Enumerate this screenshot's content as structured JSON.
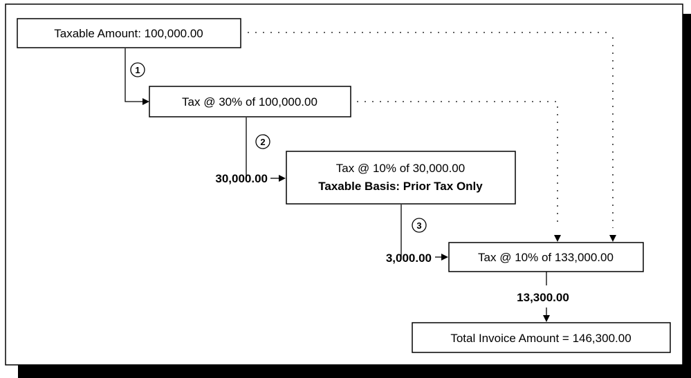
{
  "boxes": {
    "taxable_amount": "Taxable Amount: 100,000.00",
    "tax_30": "Tax @ 30% of 100,000.00",
    "tax_10_prior_line1": "Tax @ 10% of 30,000.00",
    "tax_10_prior_line2": "Taxable Basis: Prior Tax Only",
    "tax_10_total": "Tax @ 10% of 133,000.00",
    "total_invoice": "Total Invoice Amount = 146,300.00"
  },
  "amounts": {
    "step2_amount": "30,000.00",
    "step3_amount": "3,000.00",
    "final_tax_amount": "13,300.00"
  },
  "steps": [
    "1",
    "2",
    "3"
  ]
}
